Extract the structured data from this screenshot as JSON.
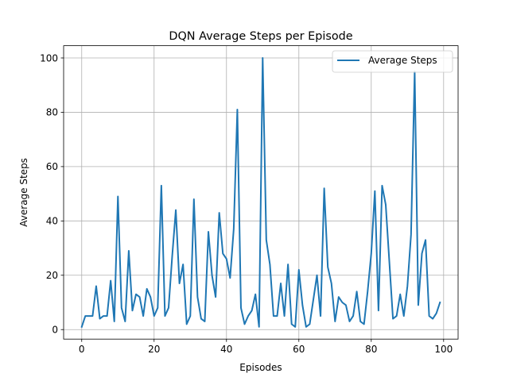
{
  "chart_data": {
    "type": "line",
    "title": "DQN Average Steps per Episode",
    "xlabel": "Episodes",
    "ylabel": "Average Steps",
    "xlim": [
      -5,
      104
    ],
    "ylim": [
      -3.5,
      104.5
    ],
    "xticks": [
      0,
      20,
      40,
      60,
      80,
      100
    ],
    "yticks": [
      0,
      20,
      40,
      60,
      80,
      100
    ],
    "grid": true,
    "legend_position": "top-right",
    "series": [
      {
        "name": "Average Steps",
        "color": "#1f77b4",
        "x": [
          0,
          1,
          2,
          3,
          4,
          5,
          6,
          7,
          8,
          9,
          10,
          11,
          12,
          13,
          14,
          15,
          16,
          17,
          18,
          19,
          20,
          21,
          22,
          23,
          24,
          25,
          26,
          27,
          28,
          29,
          30,
          31,
          32,
          33,
          34,
          35,
          36,
          37,
          38,
          39,
          40,
          41,
          42,
          43,
          44,
          45,
          46,
          47,
          48,
          49,
          50,
          51,
          52,
          53,
          54,
          55,
          56,
          57,
          58,
          59,
          60,
          61,
          62,
          63,
          64,
          65,
          66,
          67,
          68,
          69,
          70,
          71,
          72,
          73,
          74,
          75,
          76,
          77,
          78,
          79,
          80,
          81,
          82,
          83,
          84,
          85,
          86,
          87,
          88,
          89,
          90,
          91,
          92,
          93,
          94,
          95,
          96,
          97,
          98,
          99
        ],
        "values": [
          1,
          5,
          5,
          5,
          16,
          4,
          5,
          5,
          18,
          3,
          49,
          8,
          3,
          29,
          7,
          13,
          12,
          5,
          15,
          12,
          5,
          8,
          53,
          5,
          8,
          27,
          44,
          17,
          24,
          2,
          5,
          48,
          12,
          4,
          3,
          36,
          20,
          12,
          43,
          28,
          26,
          19,
          37,
          81,
          8,
          2,
          5,
          7,
          13,
          1,
          100,
          33,
          24,
          5,
          5,
          17,
          5,
          24,
          2,
          1,
          22,
          9,
          1,
          2,
          11,
          20,
          5,
          52,
          23,
          17,
          3,
          12,
          10,
          9,
          3,
          5,
          14,
          3,
          2,
          14,
          28,
          51,
          7,
          53,
          46,
          25,
          4,
          5,
          13,
          5,
          16,
          35,
          95,
          9,
          28,
          33,
          5,
          4,
          6,
          10
        ]
      }
    ]
  }
}
